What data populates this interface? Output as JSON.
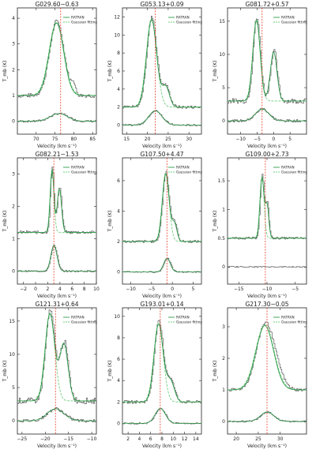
{
  "figure": {
    "colors": {
      "data": "#444444",
      "ratran": "#2e9d4a",
      "gauss": "#6fcf7f",
      "vline": "#e8402a",
      "axis": "#222222"
    },
    "legend": {
      "ratran": "RATRAN",
      "gauss": "Gaussian fitting"
    },
    "xlabel": "Velocity (km s⁻¹)",
    "ylabel": "T_mb (K)"
  },
  "chart_data": [
    {
      "type": "line",
      "title": "G029.60−0.63",
      "xlim": [
        65,
        86
      ],
      "xticks": [
        70,
        75,
        80,
        85
      ],
      "ylim": [
        -0.5,
        4.4
      ],
      "yticks": [
        0,
        1,
        2,
        3,
        4
      ],
      "vline": 76.5,
      "offset": 1.0,
      "legend": true,
      "upper": [
        {
          "amp": 2.9,
          "c": 75.4,
          "w": 1.9
        }
      ],
      "upper_data_extra": [
        {
          "amp": 0.4,
          "c": 79.8,
          "w": 0.5
        }
      ],
      "lower": [
        {
          "amp": 0.3,
          "c": 76.0,
          "w": 2.3
        }
      ],
      "noise": 0.2
    },
    {
      "type": "line",
      "title": "G053.13+0.09",
      "xlim": [
        14,
        33
      ],
      "xticks": [
        15,
        20,
        25,
        30
      ],
      "ylim": [
        -1,
        13
      ],
      "yticks": [
        0,
        2,
        4,
        6,
        8,
        10,
        12
      ],
      "vline": 21.9,
      "offset": 2.0,
      "legend": true,
      "upper": [
        {
          "amp": 10.0,
          "c": 21.0,
          "w": 1.2
        },
        {
          "amp": 2.3,
          "c": 24.4,
          "w": 0.9
        }
      ],
      "upper_data_extra": [],
      "lower": [
        {
          "amp": 1.6,
          "c": 21.9,
          "w": 1.6
        }
      ],
      "noise": 0.15
    },
    {
      "type": "line",
      "title": "G081.72+0.57",
      "xlim": [
        -14,
        10
      ],
      "xticks": [
        -10,
        -5,
        0,
        5
      ],
      "ylim": [
        -2,
        17
      ],
      "yticks": [
        0,
        5,
        10,
        15
      ],
      "vline": -3.5,
      "offset": 3.0,
      "legend": true,
      "upper": [
        {
          "amp": 12.5,
          "c": -5.2,
          "w": 1.1
        },
        {
          "amp": 7.6,
          "c": 0.0,
          "w": 1.0
        }
      ],
      "upper_data_extra": [],
      "lower": [
        {
          "amp": 1.8,
          "c": -3.5,
          "w": 2.0
        }
      ],
      "noise": 0.25
    },
    {
      "type": "line",
      "title": "G082.21−1.53",
      "xlim": [
        -3,
        10
      ],
      "xticks": [
        -2,
        0,
        2,
        4,
        6,
        8,
        10
      ],
      "ylim": [
        -0.4,
        3.5
      ],
      "yticks": [
        0,
        1,
        2,
        3
      ],
      "vline": 3.0,
      "offset": 1.2,
      "legend": true,
      "upper": [
        {
          "amp": 2.0,
          "c": 2.7,
          "w": 0.3
        },
        {
          "amp": 1.4,
          "c": 3.9,
          "w": 0.35
        }
      ],
      "upper_data_extra": [],
      "lower": [
        {
          "amp": 0.8,
          "c": 3.0,
          "w": 0.5
        }
      ],
      "noise": 0.15
    },
    {
      "type": "line",
      "title": "G107.50+4.47",
      "xlim": [
        -12,
        7
      ],
      "xticks": [
        -10,
        -5,
        0,
        5
      ],
      "ylim": [
        -0.8,
        7.5
      ],
      "yticks": [
        0,
        2,
        4,
        6
      ],
      "vline": -1.3,
      "offset": 2.0,
      "legend": true,
      "upper": [
        {
          "amp": 4.6,
          "c": -1.6,
          "w": 0.8
        },
        {
          "amp": 1.2,
          "c": 0.5,
          "w": 0.6
        }
      ],
      "upper_data_extra": [],
      "lower": [
        {
          "amp": 0.9,
          "c": -1.3,
          "w": 0.8
        }
      ],
      "noise": 0.12
    },
    {
      "type": "line",
      "title": "G109.00+2.73",
      "xlim": [
        -17,
        -3
      ],
      "xticks": [
        -15,
        -10,
        -5
      ],
      "ylim": [
        -0.3,
        1.9
      ],
      "yticks": [
        0.0,
        0.5,
        1.0,
        1.5
      ],
      "vline": -10.3,
      "offset": 0.5,
      "legend": true,
      "upper": [
        {
          "amp": 1.1,
          "c": -10.9,
          "w": 0.35
        },
        {
          "amp": 0.6,
          "c": -10.0,
          "w": 0.3
        }
      ],
      "upper_data_extra": [],
      "lower": [],
      "noise": 0.1
    },
    {
      "type": "line",
      "title": "G121.31+0.64",
      "xlim": [
        -26,
        -9
      ],
      "xticks": [
        -25,
        -20,
        -15,
        -10
      ],
      "ylim": [
        -2,
        17
      ],
      "yticks": [
        0,
        5,
        10,
        15
      ],
      "vline": -17.8,
      "offset": 3.0,
      "legend": true,
      "upper": [
        {
          "amp": 13.5,
          "c": -19.0,
          "w": 1.0
        },
        {
          "amp": 8.8,
          "c": -16.0,
          "w": 0.9
        }
      ],
      "upper_data_extra": [],
      "lower": [
        {
          "amp": 1.8,
          "c": -17.8,
          "w": 1.8
        }
      ],
      "noise": 0.3
    },
    {
      "type": "line",
      "title": "G193.01+0.14",
      "xlim": [
        1,
        15
      ],
      "xticks": [
        2,
        4,
        6,
        8,
        10,
        12,
        14
      ],
      "ylim": [
        -1,
        10.8
      ],
      "yticks": [
        0,
        2,
        4,
        6,
        8,
        10
      ],
      "vline": 7.7,
      "offset": 2.0,
      "legend": true,
      "upper": [
        {
          "amp": 7.5,
          "c": 7.4,
          "w": 0.8
        },
        {
          "amp": 2.0,
          "c": 9.5,
          "w": 0.7
        }
      ],
      "upper_data_extra": [],
      "lower": [
        {
          "amp": 1.4,
          "c": 7.7,
          "w": 0.9
        }
      ],
      "noise": 0.15
    },
    {
      "type": "line",
      "title": "G217.30−0.05",
      "xlim": [
        18,
        36
      ],
      "xticks": [
        20,
        25,
        30
      ],
      "ylim": [
        -0.4,
        3.6
      ],
      "yticks": [
        0,
        1,
        2,
        3
      ],
      "vline": 27.0,
      "offset": 1.0,
      "legend": true,
      "upper": [
        {
          "amp": 2.1,
          "c": 26.5,
          "w": 2.0
        }
      ],
      "upper_data_extra": [
        {
          "amp": 0.25,
          "c": 29.5,
          "w": 1.5
        }
      ],
      "lower": [
        {
          "amp": 0.3,
          "c": 27.0,
          "w": 1.5
        }
      ],
      "noise": 0.15
    }
  ]
}
